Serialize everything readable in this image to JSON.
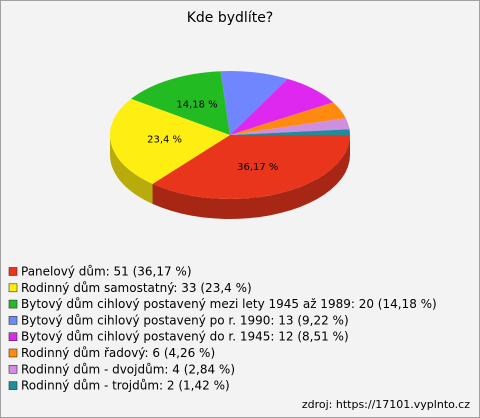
{
  "chart_data": {
    "type": "pie",
    "title": "Kde bydlíte?",
    "categories": [
      "Panelový dům: 51 (36,17 %)",
      "Rodinný dům samostatný: 33 (23,4 %)",
      "Bytový dům cihlový postavený mezi lety 1945 až 1989: 20 (14,18 %)",
      "Bytový dům cihlový postavený po r. 1990: 13 (9,22 %)",
      "Bytový dům cihlový postavený do r. 1945: 12 (8,51 %)",
      "Rodinný dům řadový: 6 (4,26 %)",
      "Rodinný dům - dvojdům: 4 (2,84 %)",
      "Rodinný dům - trojdům: 2 (1,42 %)"
    ],
    "values": [
      51,
      33,
      20,
      13,
      12,
      6,
      4,
      2
    ],
    "value_labels": [
      "36,17 %",
      "23,4 %",
      "14,18 %",
      null,
      null,
      null,
      null,
      null
    ],
    "colors": [
      "#e8351c",
      "#ffee11",
      "#22bb22",
      "#6f86ff",
      "#de28f0",
      "#ff8a10",
      "#cf8fe0",
      "#238c9a"
    ],
    "source": "zdroj: https://17101.vyplnto.cz"
  }
}
